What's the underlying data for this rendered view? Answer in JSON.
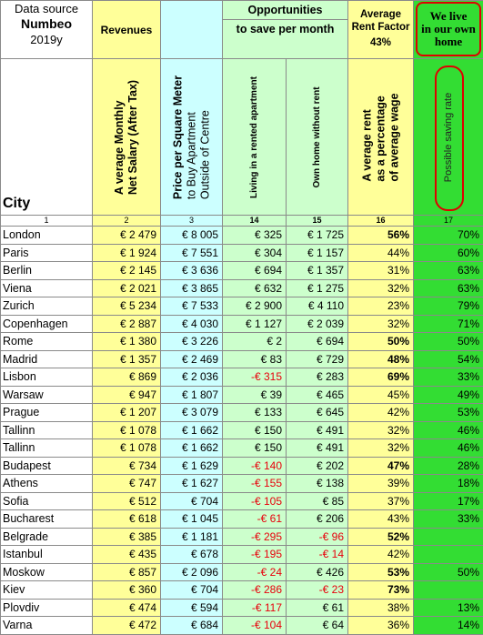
{
  "header": {
    "data_source_line1": "Data source",
    "data_source_line2": "Numbeo",
    "data_source_line3": "2019y",
    "revenues": "Revenues",
    "opportunities_line1": "Opportunities",
    "opportunities_line2": "to save per month",
    "average_rent_factor_line1": "Average",
    "average_rent_factor_line2": "Rent Factor",
    "average_rent_factor_value": "43%",
    "we_live_line1": "We live",
    "we_live_line2": "in our own",
    "we_live_line3": "home",
    "city": "City"
  },
  "columns": {
    "salary_line1": "A verage Monthly",
    "salary_line2": "Net Salary (After Tax)",
    "price_line1": "Price per Square Meter",
    "price_line2": "to Buy Apartment",
    "price_line3": "Outside of Centre",
    "rented": "Living in a rented apartment",
    "own": "Own home without rent",
    "avg_rent_line1": "A verage rent",
    "avg_rent_line2": "as a percentage",
    "avg_rent_line3": "of average wage",
    "saving": "Possible saving rate"
  },
  "index_row": [
    "1",
    "2",
    "3",
    "14",
    "15",
    "16",
    "17"
  ],
  "rows": [
    {
      "city": "London",
      "salary": "€ 2 479",
      "price": "€ 8 005",
      "rented": "€ 325",
      "rented_neg": false,
      "own": "€ 1 725",
      "own_neg": false,
      "rent_pct": "56%",
      "rent_bold": true,
      "saving": "70%"
    },
    {
      "city": "Paris",
      "salary": "€ 1 924",
      "price": "€ 7 551",
      "rented": "€ 304",
      "rented_neg": false,
      "own": "€ 1 157",
      "own_neg": false,
      "rent_pct": "44%",
      "rent_bold": false,
      "saving": "60%"
    },
    {
      "city": "Berlin",
      "salary": "€ 2 145",
      "price": "€ 3 636",
      "rented": "€ 694",
      "rented_neg": false,
      "own": "€ 1 357",
      "own_neg": false,
      "rent_pct": "31%",
      "rent_bold": false,
      "saving": "63%"
    },
    {
      "city": "Viena",
      "salary": "€ 2 021",
      "price": "€ 3 865",
      "rented": "€ 632",
      "rented_neg": false,
      "own": "€ 1 275",
      "own_neg": false,
      "rent_pct": "32%",
      "rent_bold": false,
      "saving": "63%"
    },
    {
      "city": "Zurich",
      "salary": "€ 5 234",
      "price": "€ 7 533",
      "rented": "€ 2 900",
      "rented_neg": false,
      "own": "€ 4 110",
      "own_neg": false,
      "rent_pct": "23%",
      "rent_bold": false,
      "saving": "79%"
    },
    {
      "city": "Copenhagen",
      "salary": "€ 2 887",
      "price": "€ 4 030",
      "rented": "€ 1 127",
      "rented_neg": false,
      "own": "€ 2 039",
      "own_neg": false,
      "rent_pct": "32%",
      "rent_bold": false,
      "saving": "71%"
    },
    {
      "city": "Rome",
      "salary": "€ 1 380",
      "price": "€ 3 226",
      "rented": "€ 2",
      "rented_neg": false,
      "own": "€ 694",
      "own_neg": false,
      "rent_pct": "50%",
      "rent_bold": true,
      "saving": "50%"
    },
    {
      "city": "Madrid",
      "salary": "€ 1 357",
      "price": "€ 2 469",
      "rented": "€ 83",
      "rented_neg": false,
      "own": "€ 729",
      "own_neg": false,
      "rent_pct": "48%",
      "rent_bold": true,
      "saving": "54%"
    },
    {
      "city": "Lisbon",
      "salary": "€ 869",
      "price": "€ 2 036",
      "rented": "-€ 315",
      "rented_neg": true,
      "own": "€ 283",
      "own_neg": false,
      "rent_pct": "69%",
      "rent_bold": true,
      "saving": "33%"
    },
    {
      "city": "Warsaw",
      "salary": "€ 947",
      "price": "€ 1 807",
      "rented": "€ 39",
      "rented_neg": false,
      "own": "€ 465",
      "own_neg": false,
      "rent_pct": "45%",
      "rent_bold": false,
      "saving": "49%"
    },
    {
      "city": "Prague",
      "salary": "€ 1 207",
      "price": "€ 3 079",
      "rented": "€ 133",
      "rented_neg": false,
      "own": "€ 645",
      "own_neg": false,
      "rent_pct": "42%",
      "rent_bold": false,
      "saving": "53%"
    },
    {
      "city": "Tallinn",
      "salary": "€ 1 078",
      "price": "€ 1 662",
      "rented": "€ 150",
      "rented_neg": false,
      "own": "€ 491",
      "own_neg": false,
      "rent_pct": "32%",
      "rent_bold": false,
      "saving": "46%"
    },
    {
      "city": "Tallinn",
      "salary": "€ 1 078",
      "price": "€ 1 662",
      "rented": "€ 150",
      "rented_neg": false,
      "own": "€ 491",
      "own_neg": false,
      "rent_pct": "32%",
      "rent_bold": false,
      "saving": "46%"
    },
    {
      "city": "Budapest",
      "salary": "€ 734",
      "price": "€ 1 629",
      "rented": "-€ 140",
      "rented_neg": true,
      "own": "€ 202",
      "own_neg": false,
      "rent_pct": "47%",
      "rent_bold": true,
      "saving": "28%"
    },
    {
      "city": "Athens",
      "salary": "€ 747",
      "price": "€ 1 627",
      "rented": "-€ 155",
      "rented_neg": true,
      "own": "€ 138",
      "own_neg": false,
      "rent_pct": "39%",
      "rent_bold": false,
      "saving": "18%"
    },
    {
      "city": "Sofia",
      "salary": "€ 512",
      "price": "€ 704",
      "rented": "-€ 105",
      "rented_neg": true,
      "own": "€ 85",
      "own_neg": false,
      "rent_pct": "37%",
      "rent_bold": false,
      "saving": "17%"
    },
    {
      "city": "Bucharest",
      "salary": "€ 618",
      "price": "€ 1 045",
      "rented": "-€ 61",
      "rented_neg": true,
      "own": "€ 206",
      "own_neg": false,
      "rent_pct": "43%",
      "rent_bold": false,
      "saving": "33%"
    },
    {
      "city": "Belgrade",
      "salary": "€ 385",
      "price": "€ 1 181",
      "rented": "-€ 295",
      "rented_neg": true,
      "own": "-€ 96",
      "own_neg": true,
      "rent_pct": "52%",
      "rent_bold": true,
      "saving": ""
    },
    {
      "city": "Istanbul",
      "salary": "€ 435",
      "price": "€ 678",
      "rented": "-€ 195",
      "rented_neg": true,
      "own": "-€ 14",
      "own_neg": true,
      "rent_pct": "42%",
      "rent_bold": false,
      "saving": ""
    },
    {
      "city": "Moskow",
      "salary": "€ 857",
      "price": "€ 2 096",
      "rented": "-€ 24",
      "rented_neg": true,
      "own": "€ 426",
      "own_neg": false,
      "rent_pct": "53%",
      "rent_bold": true,
      "saving": "50%"
    },
    {
      "city": "Kiev",
      "salary": "€ 360",
      "price": "€ 704",
      "rented": "-€ 286",
      "rented_neg": true,
      "own": "-€ 23",
      "own_neg": true,
      "rent_pct": "73%",
      "rent_bold": true,
      "saving": ""
    },
    {
      "city": "Plovdiv",
      "salary": "€ 474",
      "price": "€ 594",
      "rented": "-€ 117",
      "rented_neg": true,
      "own": "€ 61",
      "own_neg": false,
      "rent_pct": "38%",
      "rent_bold": false,
      "saving": "13%"
    },
    {
      "city": "Varna",
      "salary": "€ 472",
      "price": "€ 684",
      "rented": "-€ 104",
      "rented_neg": true,
      "own": "€ 64",
      "own_neg": false,
      "rent_pct": "36%",
      "rent_bold": false,
      "saving": "14%"
    }
  ],
  "colors": {
    "salary_bg": "#ffff99",
    "price_bg": "#ccffff",
    "savings_bg": "#ccffcc",
    "rent_bg": "#ffff99",
    "saving_rate_bg": "#33dd33",
    "negative_text": "#e8000b",
    "highlight_outline": "#e00000"
  }
}
